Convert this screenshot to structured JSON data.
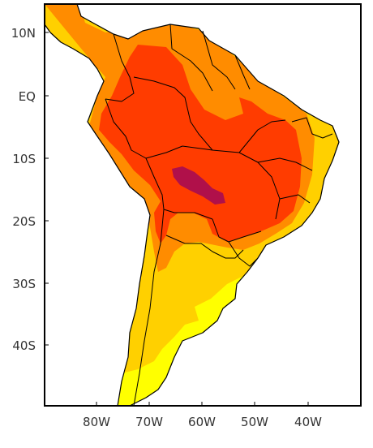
{
  "map": {
    "lat_labels": [
      "10N",
      "EQ",
      "10S",
      "20S",
      "30S",
      "40S"
    ],
    "lon_labels": [
      "80W",
      "70W",
      "60W",
      "50W",
      "40W"
    ],
    "colors": {
      "sea": "#ffffff",
      "level_1": "#ffff00",
      "level_2": "#ffd000",
      "level_3": "#ff8c00",
      "level_4": "#ff3c00",
      "level_5": "#b0104a",
      "border": "#000000",
      "frame": "#000000"
    }
  }
}
